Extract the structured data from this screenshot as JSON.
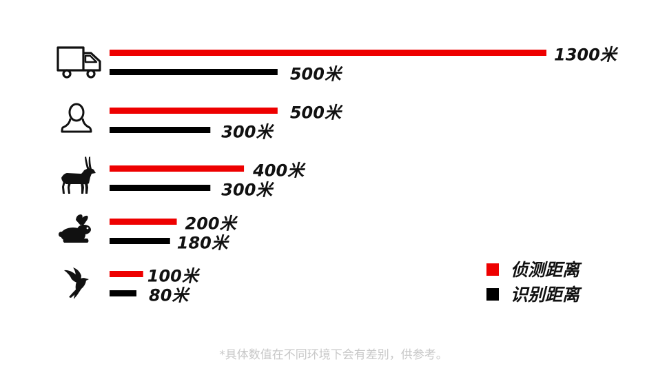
{
  "chart_data": {
    "type": "bar",
    "orientation": "horizontal",
    "categories": [
      "truck",
      "person",
      "antelope",
      "rabbit",
      "bird"
    ],
    "category_icons": [
      "truck-icon",
      "person-icon",
      "antelope-icon",
      "rabbit-icon",
      "bird-icon"
    ],
    "unit": "米",
    "series": [
      {
        "name": "侦测距离",
        "color": "#ee0000",
        "values": [
          1300,
          500,
          400,
          200,
          100
        ]
      },
      {
        "name": "识别距离",
        "color": "#000000",
        "values": [
          500,
          300,
          300,
          180,
          80
        ]
      }
    ],
    "value_labels": [
      [
        "1300米",
        "500米",
        "400米",
        "200米",
        "100米"
      ],
      [
        "500米",
        "300米",
        "300米",
        "180米",
        "80米"
      ]
    ],
    "xlim": [
      0,
      1300
    ],
    "grid": false,
    "legend_position": "bottom-right"
  },
  "legend": {
    "items": [
      {
        "label": "侦测距离",
        "color": "#ee0000"
      },
      {
        "label": "识别距离",
        "color": "#000000"
      }
    ]
  },
  "footnote": "*具体数值在不同环境下会有差别，供参考。"
}
